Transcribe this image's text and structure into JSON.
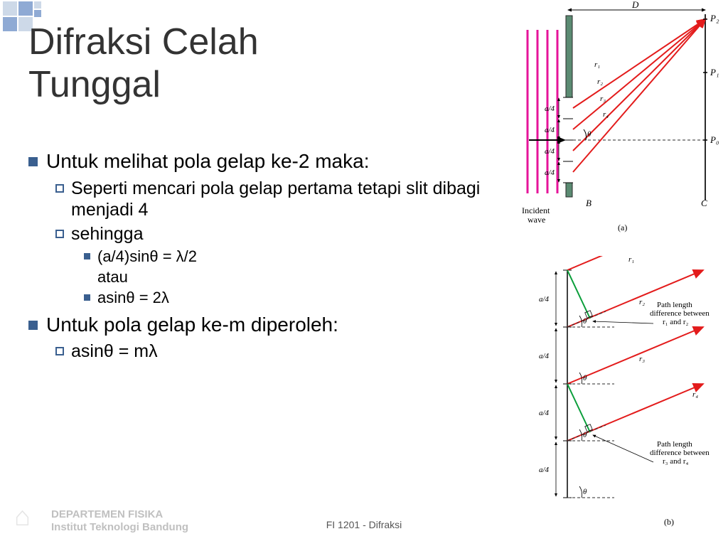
{
  "title": "Difraksi Celah\nTunggal",
  "bullets": {
    "b1": "Untuk melihat pola gelap ke-2 maka:",
    "b1a": "Seperti mencari pola gelap pertama tetapi slit dibagi menjadi 4",
    "b1b": "sehingga",
    "b1b1": "(a/4)sinθ = λ/2",
    "b1b1_sub": "atau",
    "b1b2": "asinθ = 2λ",
    "b2": "Untuk pola gelap ke-m diperoleh:",
    "b2a": "asinθ = mλ"
  },
  "footer": {
    "dept": "DEPARTEMEN FISIKA",
    "inst": "Institut Teknologi Bandung",
    "center": "FI 1201 - Difraksi"
  },
  "figA": {
    "incident": "Incident\nwave",
    "D": "D",
    "P0": "P₀",
    "P1": "P₁",
    "P2": "P₂",
    "B": "B",
    "C": "C",
    "a4": "a/4",
    "r1": "r₁",
    "r2": "r₂",
    "r3": "r₃",
    "r4": "r₄",
    "theta": "θ",
    "caption": "(a)"
  },
  "figB": {
    "a4": "a/4",
    "r1": "r₁",
    "r2": "r₂",
    "r3": "r₃",
    "r4": "r₄",
    "theta": "θ",
    "path12": "Path length\ndifference between\nr₁ and r₂",
    "path34": "Path length\ndifference between\nr₃ and r₄",
    "caption": "(b)"
  },
  "colors": {
    "ray": "#e31b1b",
    "wave": "#e6139a",
    "barrier": "#5b8b72",
    "green": "#0a9e3a",
    "bullet": "#3a5f8f"
  }
}
